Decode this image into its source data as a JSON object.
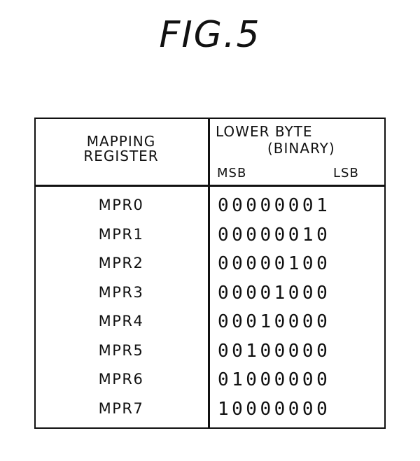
{
  "figure": {
    "title": "FIG.5"
  },
  "table": {
    "header_left": "MAPPING\nREGISTER",
    "header_right_line1": "LOWER BYTE",
    "header_right_line2": "(BINARY)",
    "msb_label": "MSB",
    "lsb_label": "LSB",
    "rows": [
      {
        "register": "MPR0",
        "binary": "00000001"
      },
      {
        "register": "MPR1",
        "binary": "00000010"
      },
      {
        "register": "MPR2",
        "binary": "00000100"
      },
      {
        "register": "MPR3",
        "binary": "00001000"
      },
      {
        "register": "MPR4",
        "binary": "00010000"
      },
      {
        "register": "MPR5",
        "binary": "00100000"
      },
      {
        "register": "MPR6",
        "binary": "01000000"
      },
      {
        "register": "MPR7",
        "binary": "10000000"
      }
    ]
  }
}
